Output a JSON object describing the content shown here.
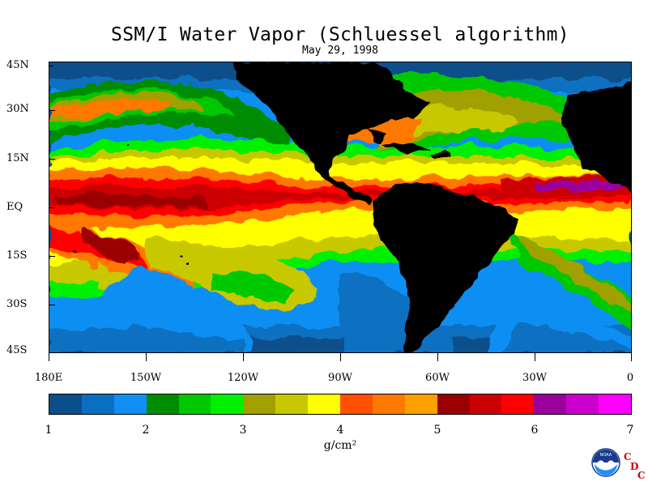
{
  "title": "SSM/I Water Vapor (Schluessel algorithm)",
  "subtitle": "May 29, 1998",
  "lat_labels": [
    "45N",
    "30N",
    "15N",
    "EQ",
    "15S",
    "30S",
    "45S"
  ],
  "lon_labels": [
    "180E",
    "150W",
    "120W",
    "90W",
    "60W",
    "30W",
    "0"
  ],
  "colorbar": {
    "colors": [
      "#0b4f8a",
      "#0a6fc0",
      "#108ef2",
      "#008c00",
      "#00c800",
      "#00f000",
      "#a0a000",
      "#c8c800",
      "#ffff00",
      "#ff5000",
      "#ff7800",
      "#ffa000",
      "#9a0000",
      "#cc0000",
      "#ff0000",
      "#9a009a",
      "#cc00cc",
      "#ff00ff"
    ],
    "tick_labels": [
      "1",
      "2",
      "3",
      "4",
      "5",
      "6",
      "7"
    ],
    "unit": "g/cm²"
  },
  "logo": {
    "icon": "noaa-logo-icon",
    "text": "NOAA",
    "cdc_letters": [
      "C",
      "D",
      "C"
    ]
  }
}
